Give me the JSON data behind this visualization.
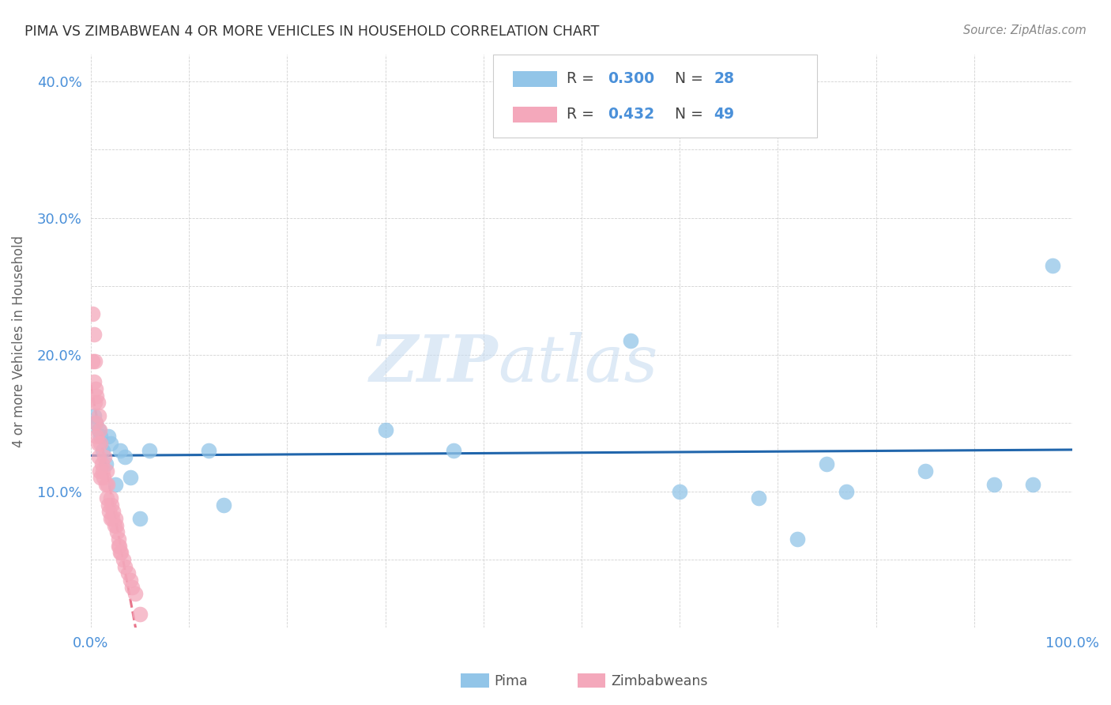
{
  "title": "PIMA VS ZIMBABWEAN 4 OR MORE VEHICLES IN HOUSEHOLD CORRELATION CHART",
  "source": "Source: ZipAtlas.com",
  "ylabel": "4 or more Vehicles in Household",
  "xlim": [
    0.0,
    1.0
  ],
  "ylim": [
    0.0,
    0.42
  ],
  "pima_color": "#92C5E8",
  "zimbabwean_color": "#F4A8BB",
  "pima_line_color": "#2166AC",
  "zimbabwean_line_color": "#E8748A",
  "pima_R": 0.3,
  "pima_N": 28,
  "zimbabwean_R": 0.432,
  "zimbabwean_N": 49,
  "pima_x": [
    0.003,
    0.005,
    0.008,
    0.01,
    0.012,
    0.015,
    0.018,
    0.02,
    0.025,
    0.03,
    0.035,
    0.04,
    0.05,
    0.06,
    0.12,
    0.135,
    0.3,
    0.37,
    0.55,
    0.6,
    0.68,
    0.72,
    0.75,
    0.77,
    0.85,
    0.92,
    0.96,
    0.98
  ],
  "pima_y": [
    0.155,
    0.15,
    0.145,
    0.14,
    0.13,
    0.12,
    0.14,
    0.135,
    0.105,
    0.13,
    0.125,
    0.11,
    0.08,
    0.13,
    0.13,
    0.09,
    0.145,
    0.13,
    0.21,
    0.1,
    0.095,
    0.065,
    0.12,
    0.1,
    0.115,
    0.105,
    0.105,
    0.265
  ],
  "zimbabwean_x": [
    0.002,
    0.002,
    0.003,
    0.003,
    0.004,
    0.004,
    0.005,
    0.005,
    0.006,
    0.006,
    0.007,
    0.007,
    0.008,
    0.008,
    0.009,
    0.009,
    0.01,
    0.01,
    0.011,
    0.012,
    0.013,
    0.014,
    0.015,
    0.016,
    0.016,
    0.017,
    0.018,
    0.019,
    0.02,
    0.02,
    0.021,
    0.022,
    0.023,
    0.024,
    0.025,
    0.026,
    0.027,
    0.028,
    0.028,
    0.029,
    0.03,
    0.031,
    0.033,
    0.035,
    0.038,
    0.04,
    0.042,
    0.045,
    0.05
  ],
  "zimbabwean_y": [
    0.23,
    0.195,
    0.215,
    0.18,
    0.195,
    0.165,
    0.175,
    0.15,
    0.17,
    0.14,
    0.165,
    0.135,
    0.155,
    0.125,
    0.145,
    0.115,
    0.135,
    0.11,
    0.12,
    0.115,
    0.11,
    0.125,
    0.105,
    0.115,
    0.095,
    0.105,
    0.09,
    0.085,
    0.095,
    0.08,
    0.09,
    0.08,
    0.085,
    0.075,
    0.08,
    0.075,
    0.07,
    0.065,
    0.06,
    0.06,
    0.055,
    0.055,
    0.05,
    0.045,
    0.04,
    0.035,
    0.03,
    0.025,
    0.01
  ],
  "watermark_zip": "ZIP",
  "watermark_atlas": "atlas",
  "background_color": "#FFFFFF",
  "grid_color": "#CCCCCC"
}
